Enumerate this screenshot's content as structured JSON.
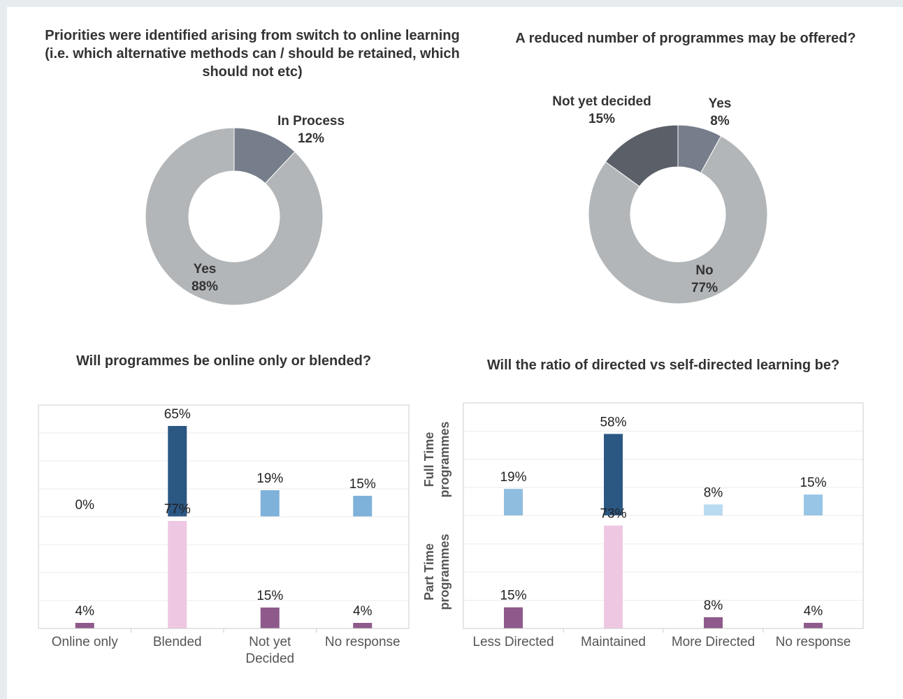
{
  "chart_data": [
    {
      "type": "donut",
      "title": "Priorities were identified arising from switch to online learning (i.e. which alternative methods can / should be retained, which should not etc)",
      "categories": [
        "In Process",
        "Yes"
      ],
      "values": [
        12,
        88
      ],
      "value_labels": [
        "12%",
        "88%"
      ],
      "colors": [
        "#777e8b",
        "#b3b6b8"
      ]
    },
    {
      "type": "donut",
      "title": "A reduced number of programmes may be offered?",
      "categories": [
        "Yes",
        "No",
        "Not yet decided"
      ],
      "values": [
        8,
        77,
        15
      ],
      "value_labels": [
        "8%",
        "77%",
        "15%"
      ],
      "colors": [
        "#777e8b",
        "#b3b6b8",
        "#5b5f68"
      ]
    },
    {
      "type": "faceted-bar",
      "title": "Will programmes be online only or blended?",
      "categories": [
        "Online only",
        "Blended",
        "Not yet Decided",
        "No response"
      ],
      "series": [
        {
          "values": [
            0,
            65,
            19,
            15
          ],
          "value_labels": [
            "0%",
            "65%",
            "19%",
            "15%"
          ],
          "colors": [
            "#7fb2da",
            "#2b5783",
            "#7fb2da",
            "#7fb2da"
          ]
        },
        {
          "values": [
            4,
            77,
            15,
            4
          ],
          "value_labels": [
            "4%",
            "77%",
            "15%",
            "4%"
          ],
          "colors": [
            "#8e5a8b",
            "#eec8e3",
            "#8e5a8b",
            "#8e5a8b"
          ]
        }
      ],
      "ylim": [
        0,
        80
      ],
      "yticks": [
        0,
        20,
        40,
        60,
        80
      ],
      "grid": true
    },
    {
      "type": "faceted-bar",
      "title": "Will the ratio of directed vs self-directed learning be?",
      "categories": [
        "Less Directed",
        "Maintained",
        "More Directed",
        "No response"
      ],
      "series": [
        {
          "name": "Full Time programmes",
          "values": [
            19,
            58,
            8,
            15
          ],
          "value_labels": [
            "19%",
            "58%",
            "8%",
            "15%"
          ],
          "colors": [
            "#8fbde0",
            "#2b5783",
            "#b9dbf1",
            "#98c5e6"
          ]
        },
        {
          "name": "Part Time programmes",
          "values": [
            15,
            73,
            8,
            4
          ],
          "value_labels": [
            "15%",
            "73%",
            "8%",
            "4%"
          ],
          "colors": [
            "#8e5a8b",
            "#eec8e3",
            "#8e5a8b",
            "#8e5a8b"
          ]
        }
      ],
      "ylim": [
        0,
        80
      ],
      "yticks": [
        0,
        20,
        40,
        60,
        80
      ],
      "grid": true
    }
  ]
}
